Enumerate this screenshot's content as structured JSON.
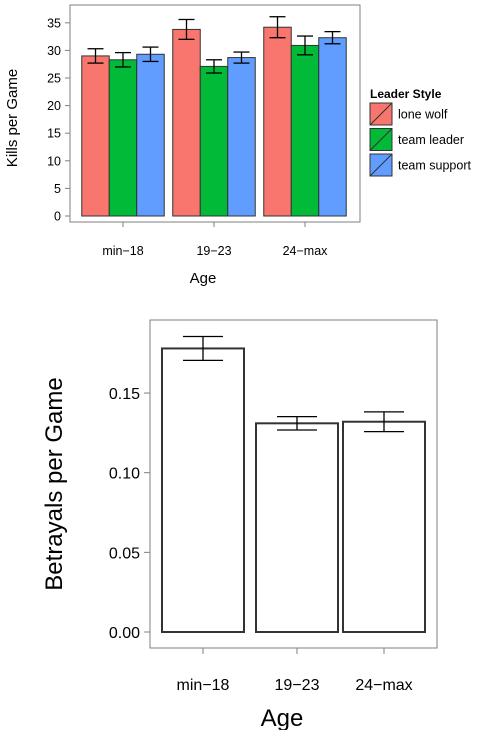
{
  "chart_data": [
    {
      "type": "bar",
      "xlabel": "Age",
      "ylabel": "Kills per Game",
      "ylim": [
        0,
        36.5
      ],
      "yticks": [
        0,
        5,
        10,
        15,
        20,
        25,
        30,
        35
      ],
      "grid": false,
      "legend": {
        "title": "Leader Style",
        "position": "right"
      },
      "categories": [
        "min−18",
        "19−23",
        "24−max"
      ],
      "series": [
        {
          "name": "lone wolf",
          "color": "#F8766D",
          "values": [
            29.0,
            33.8,
            34.2
          ],
          "error": [
            1.3,
            1.8,
            1.9
          ]
        },
        {
          "name": "team leader",
          "color": "#00BA38",
          "values": [
            28.3,
            27.1,
            30.9
          ],
          "error": [
            1.3,
            1.2,
            1.7
          ]
        },
        {
          "name": "team support",
          "color": "#619CFF",
          "values": [
            29.3,
            28.7,
            32.3
          ],
          "error": [
            1.3,
            1.0,
            1.1
          ]
        }
      ]
    },
    {
      "type": "bar",
      "xlabel": "Age",
      "ylabel": "Betrayals per Game",
      "ylim": [
        0,
        0.187
      ],
      "yticks": [
        "0.00",
        "0.05",
        "0.10",
        "0.15"
      ],
      "grid": false,
      "categories": [
        "min−18",
        "19−23",
        "24−max"
      ],
      "fill": "#ffffff",
      "values": [
        0.178,
        0.131,
        0.132
      ],
      "error": [
        0.0075,
        0.0042,
        0.0062
      ]
    }
  ]
}
